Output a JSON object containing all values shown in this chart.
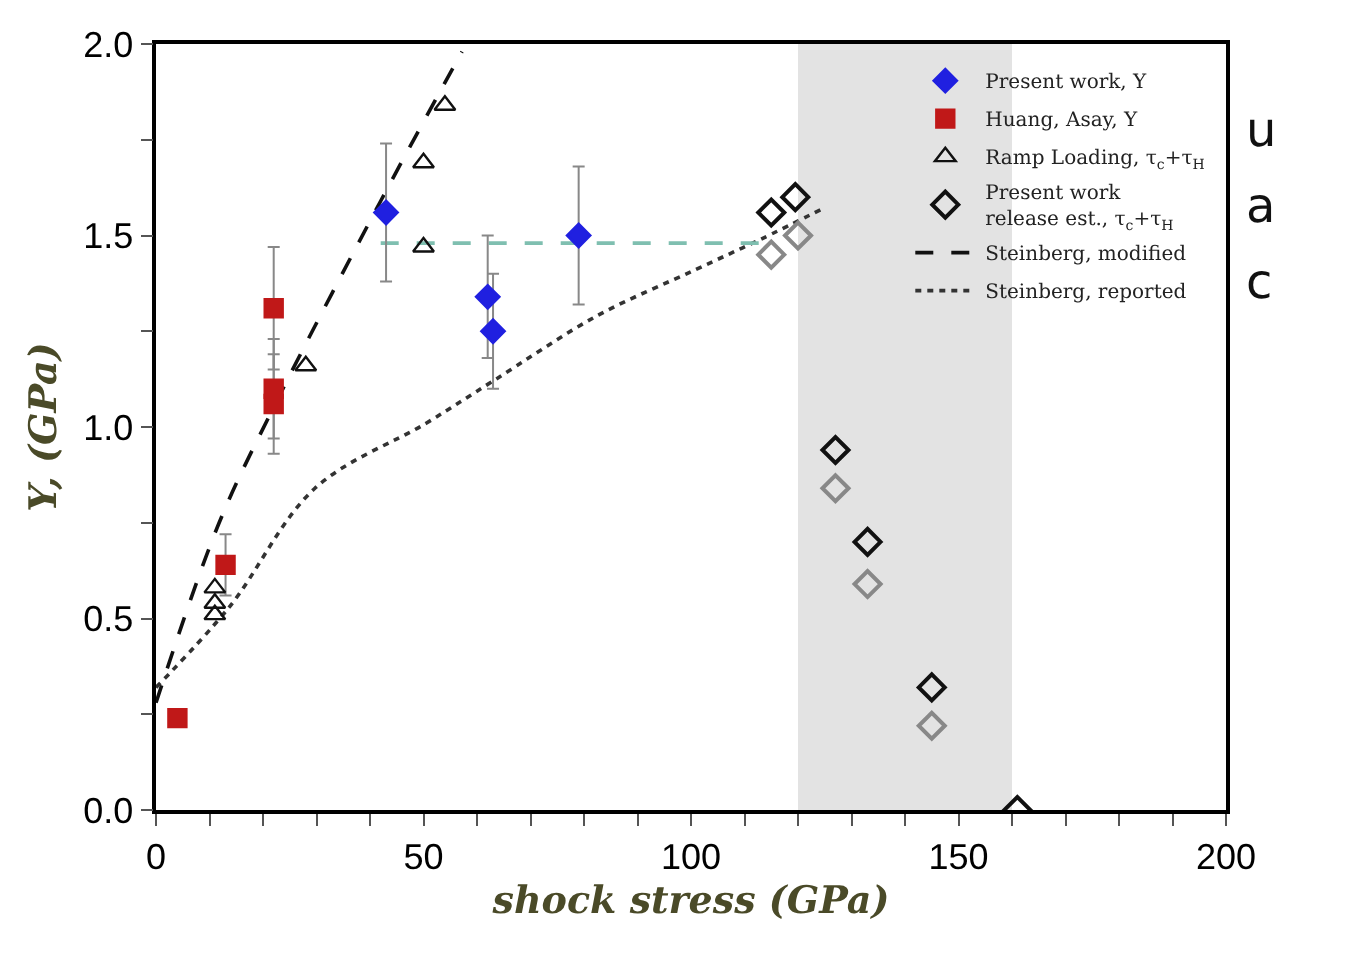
{
  "chart_data": {
    "type": "scatter",
    "xlabel": "shock stress (GPa)",
    "ylabel": "Y, (GPa)",
    "xlim": [
      0,
      200
    ],
    "ylim": [
      0,
      2.0
    ],
    "xticks": [
      0,
      {
        "value": 10,
        "label": null
      },
      {
        "value": 20,
        "label": null
      },
      {
        "value": 30,
        "label": null
      },
      {
        "value": 40,
        "label": null
      },
      50,
      {
        "value": 60,
        "label": null
      },
      {
        "value": 70,
        "label": null
      },
      {
        "value": 80,
        "label": null
      },
      {
        "value": 90,
        "label": null
      },
      100,
      {
        "value": 110,
        "label": null
      },
      {
        "value": 120,
        "label": null
      },
      {
        "value": 130,
        "label": null
      },
      {
        "value": 140,
        "label": null
      },
      150,
      {
        "value": 160,
        "label": null
      },
      {
        "value": 170,
        "label": null
      },
      {
        "value": 180,
        "label": null
      },
      {
        "value": 190,
        "label": null
      },
      200
    ],
    "yticks": [
      {
        "value": 0,
        "label": "0.0"
      },
      {
        "value": 0.25,
        "label": null
      },
      0.5,
      {
        "value": 0.75,
        "label": null
      },
      {
        "value": 1.0,
        "label": "1.0"
      },
      {
        "value": 1.25,
        "label": null
      },
      1.5,
      {
        "value": 1.75,
        "label": null
      },
      {
        "value": 2.0,
        "label": "2.0"
      }
    ],
    "grid": false,
    "legend": "top right",
    "bands": [
      {
        "axis": "x",
        "from": 120,
        "to": 160,
        "color": "#e3e3e3"
      }
    ],
    "series": [
      {
        "name": "Steinberg, modified",
        "type": "line",
        "line_style": "dashed",
        "marker": "none",
        "color": "#111111",
        "x": [
          0,
          11.8,
          22.3,
          42,
          57.2
        ],
        "values": [
          0.28,
          0.75,
          1.06,
          1.59,
          1.98
        ]
      },
      {
        "name": "Steinberg, reported",
        "type": "line",
        "line_style": "dotted",
        "marker": "none",
        "color": "#333333",
        "x": [
          0,
          13.7,
          29.7,
          50.5,
          63,
          82.4,
          100.7,
          113,
          124.6
        ],
        "values": [
          0.32,
          0.53,
          0.84,
          1.01,
          1.12,
          1.29,
          1.41,
          1.49,
          1.57
        ]
      },
      {
        "type": "line",
        "line_style": "dashed",
        "marker": "none",
        "color": "#7fbfb0",
        "x": [
          42,
          116
        ],
        "values": [
          1.48,
          1.48
        ]
      },
      {
        "name": "Present work, Y",
        "marker": "diamond",
        "color": "#2020e0",
        "x": [
          43,
          62,
          63,
          79
        ],
        "values": [
          1.56,
          1.34,
          1.25,
          1.5
        ],
        "errors": [
          0.18,
          0.16,
          0.15,
          0.18
        ]
      },
      {
        "name": "Huang, Asay, Y",
        "marker": "square",
        "color": "#c01818",
        "x": [
          4,
          13,
          22,
          22,
          22
        ],
        "values": [
          0.24,
          0.64,
          1.31,
          1.1,
          1.06
        ],
        "errors": [
          null,
          0.08,
          0.16,
          0.13,
          0.13
        ]
      },
      {
        "name": "Ramp Loading, τ$_{c}$+τ$_{H}$",
        "marker": "triangle",
        "color": "#111111",
        "x": [
          11,
          11,
          11,
          28,
          50,
          50,
          54
        ],
        "values": [
          0.58,
          0.54,
          0.51,
          1.16,
          1.47,
          1.69,
          1.84
        ]
      },
      {
        "name": "Present work\nrelease est., τ$_{c}$+τ$_{H}$",
        "marker": "diamond",
        "color": "#111111",
        "x": [
          115,
          119.5,
          115,
          120,
          127,
          127,
          133,
          133,
          145,
          145,
          161
        ],
        "values": [
          1.56,
          1.6,
          1.45,
          1.5,
          0.94,
          0.84,
          0.7,
          0.59,
          0.32,
          0.22,
          0.0
        ],
        "colors": [
          "#111111",
          "#111111",
          "#888888",
          "#888888",
          "#111111",
          "#888888",
          "#111111",
          "#888888",
          "#111111",
          "#888888",
          "#111111"
        ]
      }
    ],
    "annotations": [
      "u",
      "a",
      "c"
    ]
  }
}
